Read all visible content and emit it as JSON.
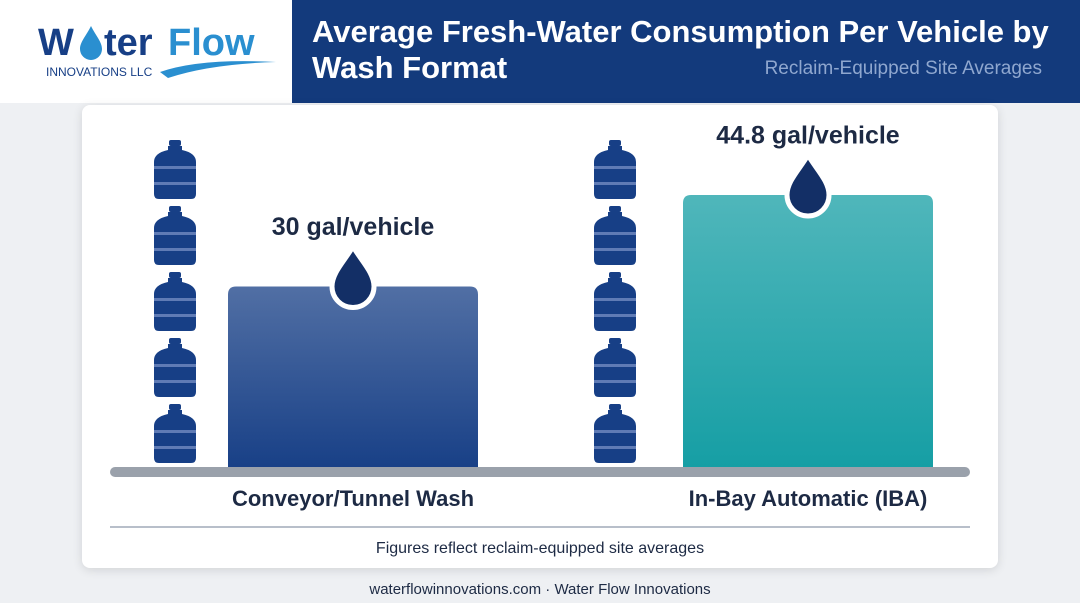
{
  "logo": {
    "name_start": "W",
    "name_end": "ter",
    "name_accent": "Flow",
    "tagline": "INNOVATIONS LLC"
  },
  "chart_data": {
    "type": "bar",
    "title": "Average Fresh-Water Consumption Per Vehicle by Wash Format",
    "subtitle": "Reclaim-Equipped Site Averages",
    "categories": [
      "Conveyor/Tunnel Wash",
      "In-Bay Automatic (IBA)"
    ],
    "values": [
      30,
      44.8
    ],
    "value_labels": [
      "30 gal/vehicle",
      "44.8 gal/vehicle"
    ],
    "colors": [
      "#173f86",
      "#159ea4"
    ],
    "note": "Figures reflect reclaim-equipped site averages"
  },
  "footer": "waterflowinnovations.com · Water Flow Innovations"
}
